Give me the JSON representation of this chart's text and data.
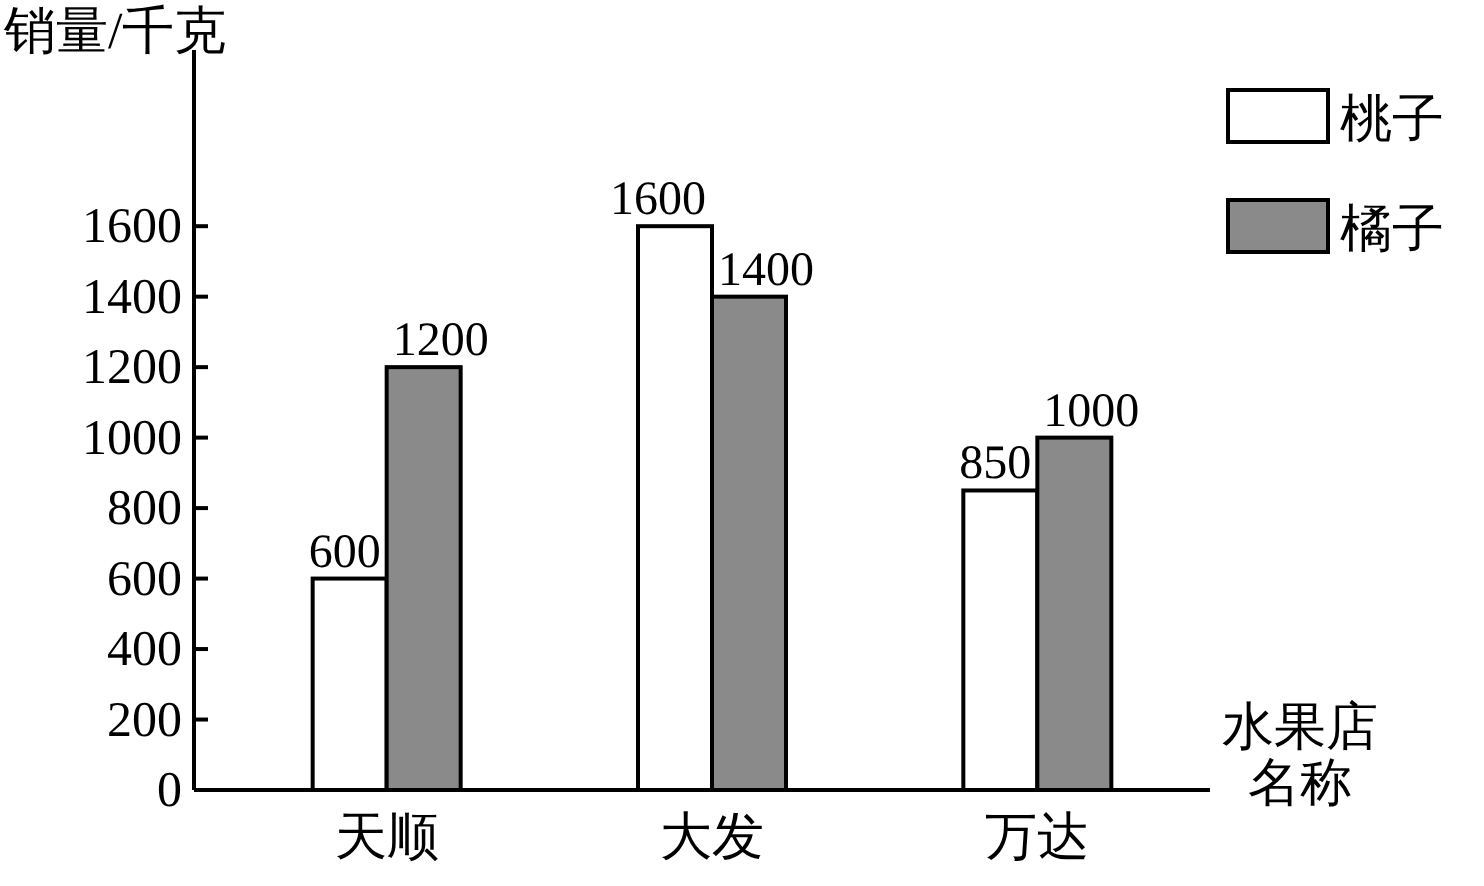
{
  "chart_data": {
    "type": "bar",
    "ylabel": "销量/千克",
    "xlabel": "水果店名称",
    "categories": [
      "天顺",
      "大发",
      "万达"
    ],
    "series": [
      {
        "name": "桃子",
        "color": "#ffffff",
        "values": [
          600,
          1600,
          850
        ]
      },
      {
        "name": "橘子",
        "color": "#8a8a8a",
        "values": [
          1200,
          1400,
          1000
        ]
      }
    ],
    "ylim": [
      0,
      2100
    ],
    "yticks": [
      0,
      200,
      400,
      600,
      800,
      1000,
      1200,
      1400,
      1600
    ],
    "data_labels": true,
    "legend": "top right",
    "grid": false
  }
}
